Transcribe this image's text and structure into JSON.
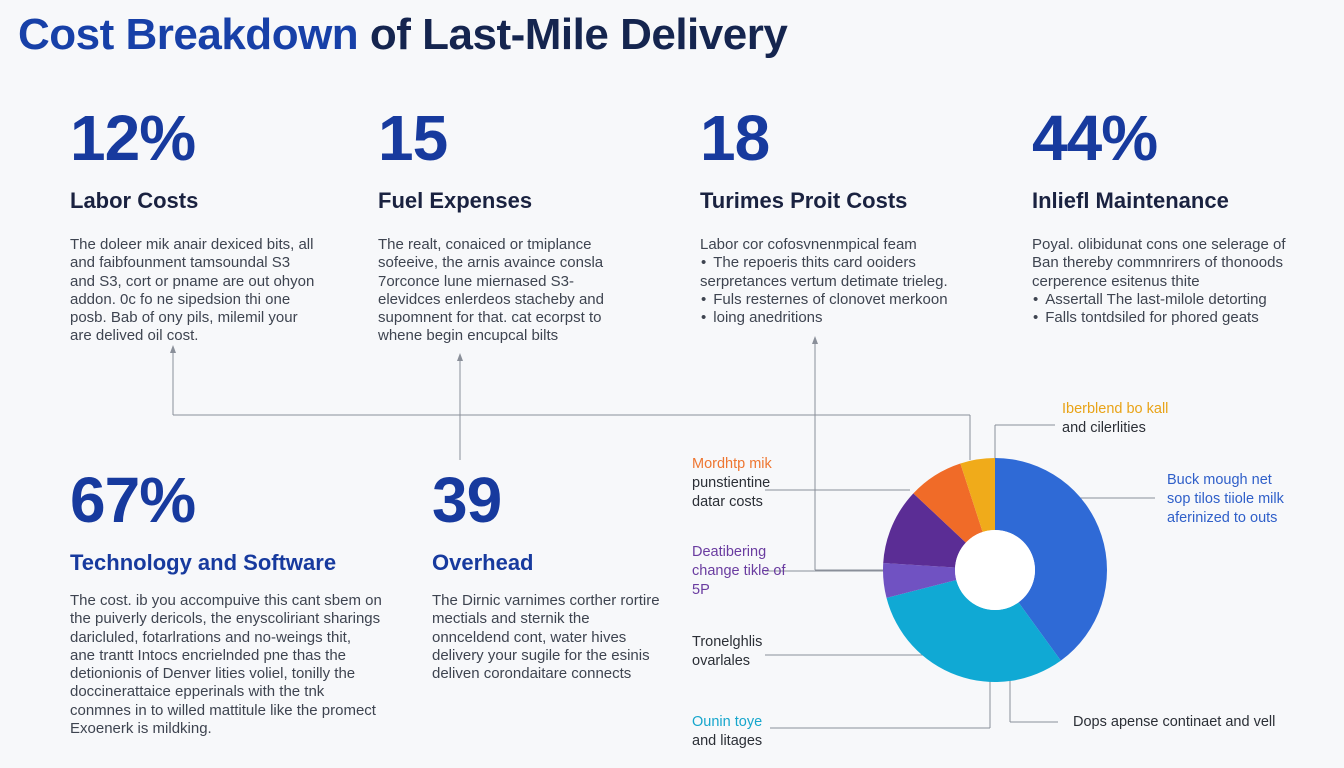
{
  "title": {
    "part1": "Cost Breakdown",
    "part2": "of Last-Mile Delivery"
  },
  "stats": [
    {
      "value": "12%",
      "label": "Labor Costs",
      "desc": [
        "The doleer mik anair dexiced bits, all",
        "and faibfounment tamsoundal S3",
        "and S3, cort or pname are out ohyon",
        "addon. 0c fo ne sipedsion thi one",
        "posb. Bab of ony pils, milemil your",
        "are delived oil cost."
      ]
    },
    {
      "value": "15",
      "label": "Fuel Expenses",
      "desc": [
        "The realt, conaiced or tmiplance",
        "sofeeive, the arnis avaince consla",
        "7orconce lune miernased S3-",
        "elevidces enlerdeos stacheby and",
        "supomnent for that. cat ecorpst to",
        "whene begin encupcal bilts"
      ]
    },
    {
      "value": "18",
      "label": "Turimes Proit Costs",
      "desc": [
        "Labor cor cofosvnenmpical feam"
      ],
      "bullets": [
        "The repoeris thits card ooiders",
        "serpretances vertum detimate trieleg.",
        "Fuls resternes of clonovet merkoon",
        "loing anedritions"
      ],
      "bullets_pre": 1
    },
    {
      "value": "44%",
      "label": "Inliefl Maintenance",
      "desc": [
        "Poyal. olibidunat cons one selerage of",
        "Ban thereby commnrirers of thonoods",
        "cerperence esitenus thite"
      ],
      "bullets": [
        "Assertall The last-milole detorting",
        "Falls tontdsiled for phored geats"
      ]
    },
    {
      "value": "67%",
      "label": "Technology and Software",
      "desc": [
        "The cost. ib you accompuive this cant sbem on",
        "the puiverly dericols, the enyscoliriant sharings",
        "daricluled, fotarlrations and no-weings thit,",
        "ane trantt Intocs encrielnded pne thas the",
        "detionionis of Denver lities voliel, tonilly the",
        "doccinerattaice epperinals with the tnk",
        "conmnes in to willed mattitule like the promect",
        "Exoenerk is mildking."
      ]
    },
    {
      "value": "39",
      "label": "Overhead",
      "desc": [
        "The Dirnic varnimes corther rortire",
        "mectials and sternik the",
        "onnceldend cont, water hives",
        "delivery your sugile for the esinis",
        "deliven corondaitare connects"
      ]
    }
  ],
  "callouts": [
    {
      "lines": [
        "Iberblend bo kall",
        "and cilerlities"
      ],
      "accent": "#e8a317"
    },
    {
      "lines": [
        "Buck mough net",
        "sop tilos tiiole milk",
        "aferinized to outs"
      ],
      "accent": "#2f5fc9"
    },
    {
      "lines": [
        "Mordhtp mik",
        "punstientine",
        "datar costs"
      ],
      "accent": "#ee7631"
    },
    {
      "lines": [
        "Deatibering",
        "change tikle of",
        "5P"
      ],
      "accent": "#6a3ca0"
    },
    {
      "lines": [
        "Tronelghlis",
        "ovarlales"
      ],
      "accent": "#2b2f36"
    },
    {
      "lines": [
        "Ounin toye",
        "and litages"
      ],
      "accent": "#16a6cc"
    },
    {
      "lines": [
        "Dops apense continaet and vell"
      ],
      "accent": "#2b2f36"
    }
  ],
  "chart_data": {
    "type": "pie",
    "slices": [
      {
        "value": 40,
        "color": "#2f6ad6"
      },
      {
        "value": 31,
        "color": "#10a9d4"
      },
      {
        "value": 5,
        "color": "#7052c2"
      },
      {
        "value": 11,
        "color": "#5b2d95"
      },
      {
        "value": 8,
        "color": "#f06b28"
      },
      {
        "value": 5,
        "color": "#f0ab1a"
      }
    ]
  }
}
